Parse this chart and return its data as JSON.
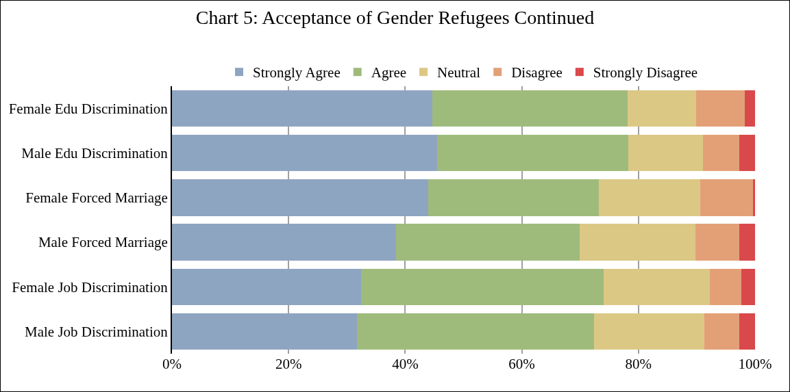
{
  "chart_data": {
    "type": "bar",
    "title": "Chart 5: Acceptance of Gender Refugees Continued",
    "orientation": "horizontal",
    "stacked": true,
    "categories": [
      "Female Edu Discrimination",
      "Male Edu Discrimination",
      "Female Forced Marriage",
      "Male Forced Marriage",
      "Female Job Discrimination",
      "Male Job Discrimination"
    ],
    "series": [
      {
        "name": "Strongly Agree",
        "color": "#8ea5c1",
        "values": [
          44.7,
          45.5,
          43.9,
          38.4,
          32.4,
          31.7
        ]
      },
      {
        "name": "Agree",
        "color": "#9fbb7c",
        "values": [
          33.4,
          32.8,
          29.3,
          31.5,
          41.6,
          40.7
        ]
      },
      {
        "name": "Neutral",
        "color": "#dcc885",
        "values": [
          11.8,
          12.8,
          17.4,
          19.9,
          18.2,
          18.9
        ]
      },
      {
        "name": "Disagree",
        "color": "#e3a077",
        "values": [
          8.3,
          6.2,
          9.0,
          7.5,
          5.5,
          6.0
        ]
      },
      {
        "name": "Strongly Disagree",
        "color": "#d9494b",
        "values": [
          1.8,
          2.7,
          0.4,
          2.7,
          2.3,
          2.7
        ]
      }
    ],
    "xlim": [
      0,
      100
    ],
    "xticks": [
      {
        "value": 0,
        "label": "0%"
      },
      {
        "value": 20,
        "label": "20%"
      },
      {
        "value": 40,
        "label": "40%"
      },
      {
        "value": 60,
        "label": "60%"
      },
      {
        "value": 80,
        "label": "80%"
      },
      {
        "value": 100,
        "label": "100%"
      }
    ],
    "grid": "x",
    "legend": "top"
  }
}
